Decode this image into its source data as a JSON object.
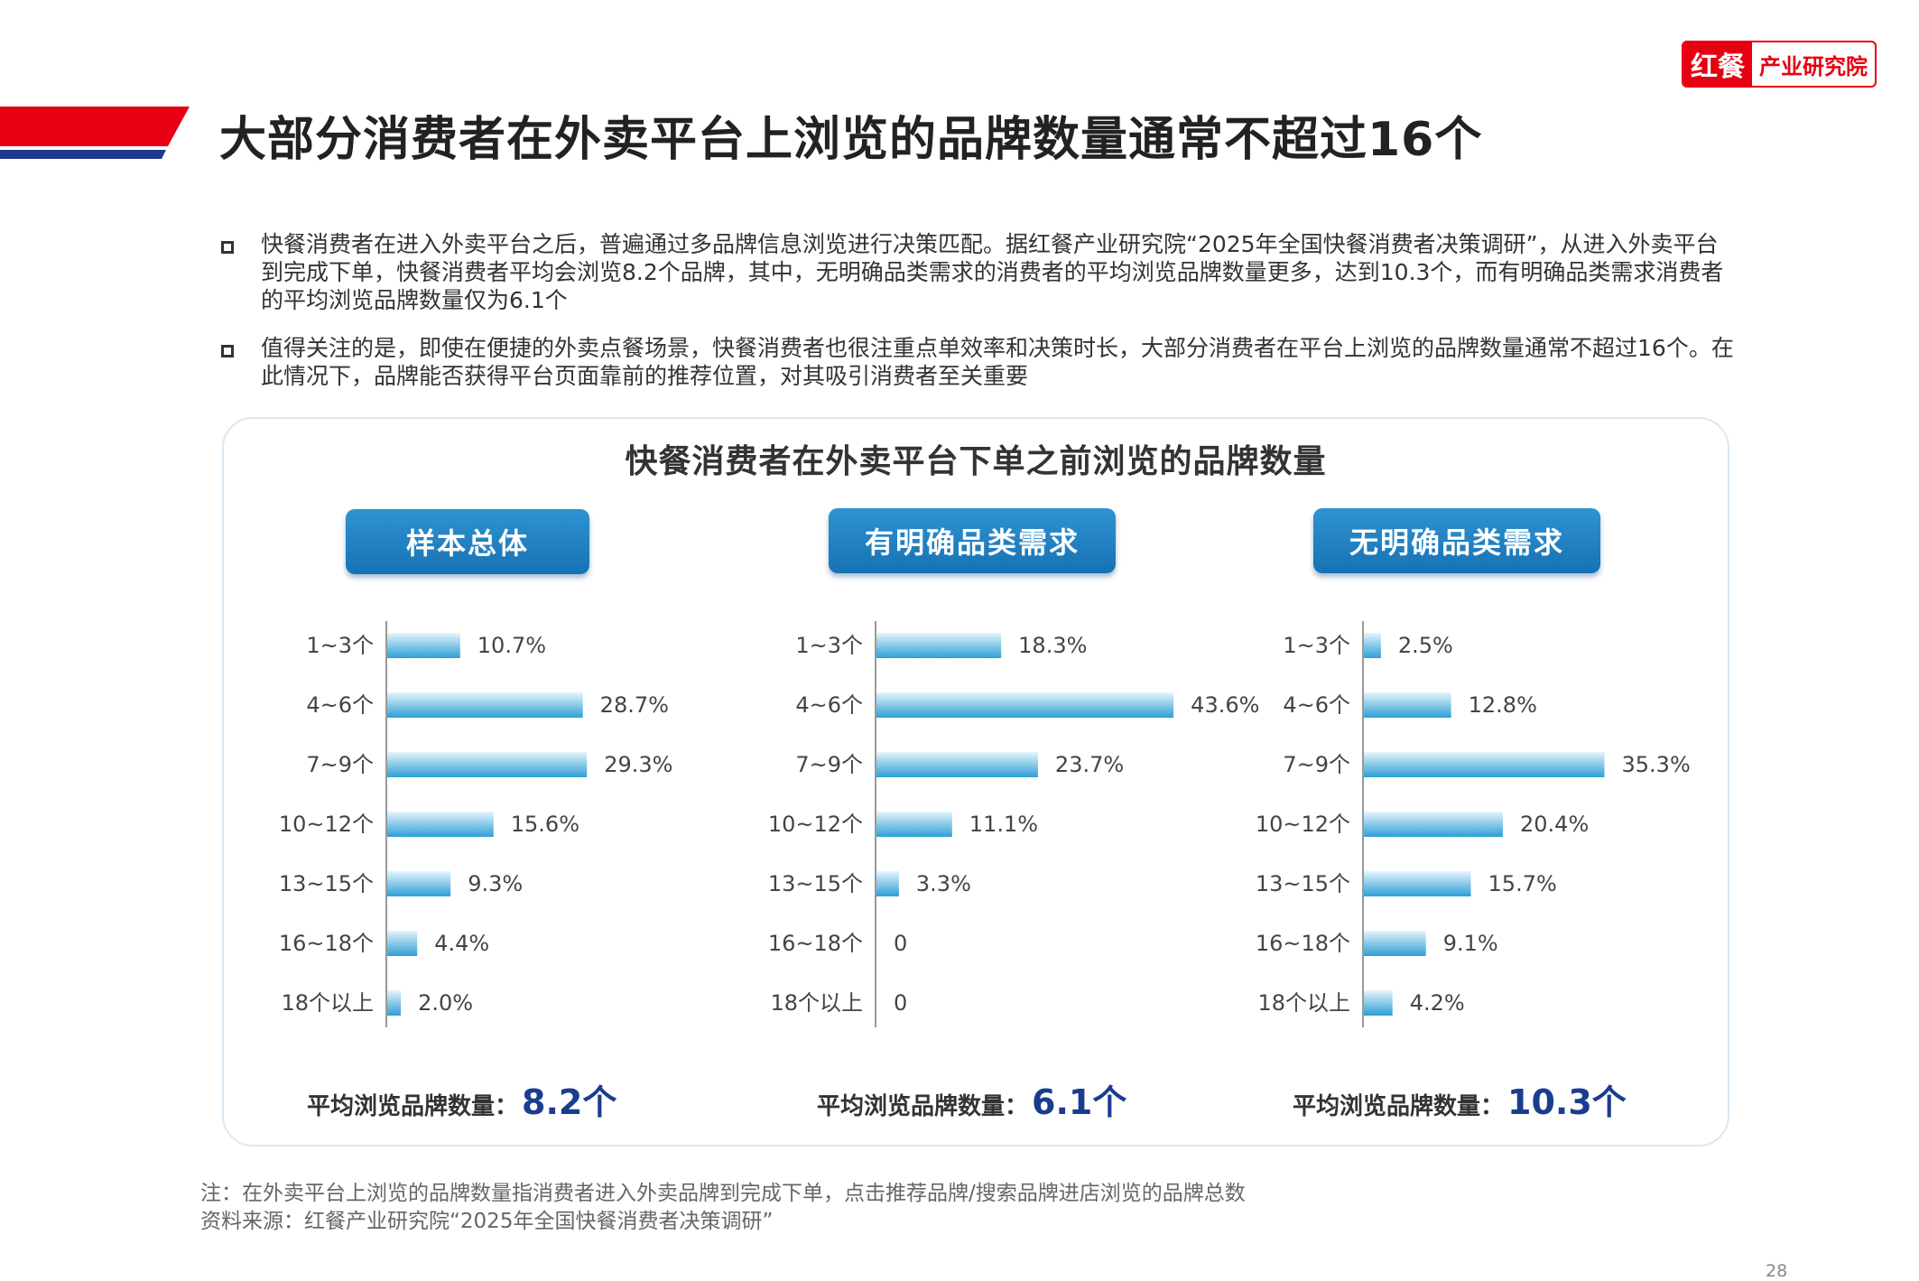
{
  "logo": {
    "mark": "红餐",
    "text": "产业研究院"
  },
  "title": "大部分消费者在外卖平台上浏览的品牌数量通常不超过16个",
  "bullets": [
    "快餐消费者在进入外卖平台之后，普遍通过多品牌信息浏览进行决策匹配。据红餐产业研究院“2025年全国快餐消费者决策调研”，从进入外卖平台到完成下单，快餐消费者平均会浏览8.2个品牌，其中，无明确品类需求的消费者的平均浏览品牌数量更多，达到10.3个，而有明确品类需求消费者的平均浏览品牌数量仅为6.1个",
    "值得关注的是，即使在便捷的外卖点餐场景，快餐消费者也很注重点单效率和决策时长，大部分消费者在平台上浏览的品牌数量通常不超过16个。在此情况下，品牌能否获得平台页面靠前的推荐位置，对其吸引消费者至关重要"
  ],
  "chart_data": {
    "type": "bar",
    "orientation": "horizontal",
    "title": "快餐消费者在外卖平台下单之前浏览的品牌数量",
    "categories": [
      "1~3个",
      "4~6个",
      "7~9个",
      "10~12个",
      "13~15个",
      "16~18个",
      "18个以上"
    ],
    "avg_label": "平均浏览品牌数量：",
    "series": [
      {
        "name": "样本总体",
        "values": [
          10.7,
          28.7,
          29.3,
          15.6,
          9.3,
          4.4,
          2.0
        ],
        "labels": [
          "10.7%",
          "28.7%",
          "29.3%",
          "15.6%",
          "9.3%",
          "4.4%",
          "2.0%"
        ],
        "average": "8.2个"
      },
      {
        "name": "有明确品类需求",
        "values": [
          18.3,
          43.6,
          23.7,
          11.1,
          3.3,
          0,
          0
        ],
        "labels": [
          "18.3%",
          "43.6%",
          "23.7%",
          "11.1%",
          "3.3%",
          "0",
          "0"
        ],
        "average": "6.1个"
      },
      {
        "name": "无明确品类需求",
        "values": [
          2.5,
          12.8,
          35.3,
          20.4,
          15.7,
          9.1,
          4.2
        ],
        "labels": [
          "2.5%",
          "12.8%",
          "35.3%",
          "20.4%",
          "15.7%",
          "9.1%",
          "4.2%"
        ],
        "average": "10.3个"
      }
    ],
    "colors": {
      "bar_top": "#e4f4fc",
      "bar_bottom": "#2e9fd6",
      "avg_value": "#1a3d8f",
      "pill": "#1f82c4"
    }
  },
  "notes": [
    "注：在外卖平台上浏览的品牌数量指消费者进入外卖品牌到完成下单，点击推荐品牌/搜索品牌进店浏览的品牌总数",
    "资料来源：红餐产业研究院“2025年全国快餐消费者决策调研”"
  ],
  "page_number": "28"
}
